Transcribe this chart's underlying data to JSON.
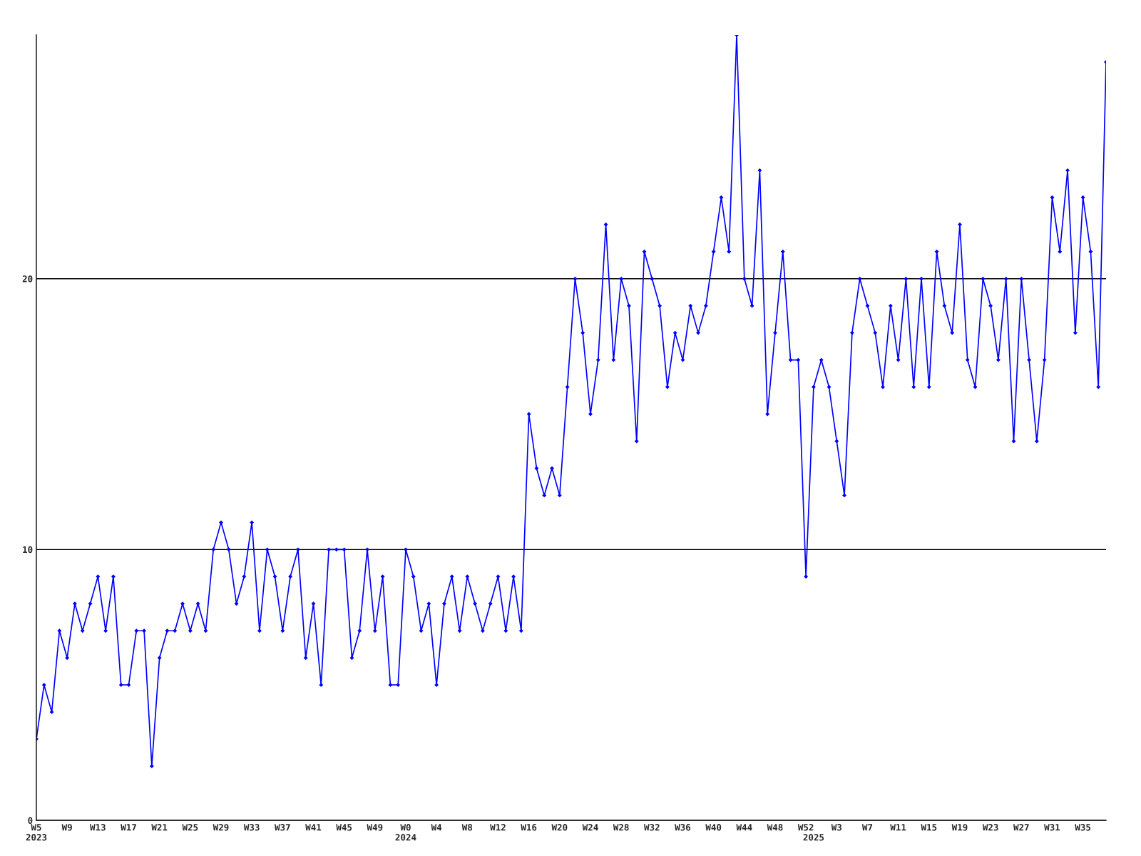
{
  "chart_data": {
    "type": "line",
    "categories": [
      "W5\n2023",
      null,
      null,
      null,
      "W9",
      null,
      null,
      null,
      "W13",
      null,
      null,
      null,
      "W17",
      null,
      null,
      null,
      "W21",
      null,
      null,
      null,
      "W25",
      null,
      null,
      null,
      "W29",
      null,
      null,
      null,
      "W33",
      null,
      null,
      null,
      "W37",
      null,
      null,
      null,
      "W41",
      null,
      null,
      null,
      "W45",
      null,
      null,
      null,
      "W49",
      null,
      null,
      null,
      "W0\n2024",
      null,
      null,
      null,
      "W4",
      null,
      null,
      null,
      "W8",
      null,
      null,
      null,
      "W12",
      null,
      null,
      null,
      "W16",
      null,
      null,
      null,
      "W20",
      null,
      null,
      null,
      "W24",
      null,
      null,
      null,
      "W28",
      null,
      null,
      null,
      "W32",
      null,
      null,
      null,
      "W36",
      null,
      null,
      null,
      "W40",
      null,
      null,
      null,
      "W44",
      null,
      null,
      null,
      "W48",
      null,
      null,
      null,
      "W52",
      "\n2025",
      null,
      null,
      "W3",
      null,
      null,
      null,
      "W7",
      null,
      null,
      null,
      "W11",
      null,
      null,
      null,
      "W15",
      null,
      null,
      null,
      "W19",
      null,
      null,
      null,
      "W23",
      null,
      null,
      null,
      "W27",
      null,
      null,
      null,
      "W31",
      null,
      null,
      null,
      "W35",
      null,
      null,
      null
    ],
    "series": [
      {
        "color": "#0000ff",
        "values": [
          3,
          5,
          4,
          7,
          6,
          8,
          7,
          8,
          9,
          7,
          9,
          5,
          5,
          7,
          7,
          2,
          6,
          7,
          7,
          8,
          7,
          8,
          7,
          10,
          11,
          10,
          8,
          9,
          11,
          7,
          10,
          9,
          7,
          9,
          10,
          6,
          8,
          5,
          10,
          10,
          10,
          6,
          7,
          10,
          7,
          9,
          5,
          5,
          10,
          9,
          7,
          8,
          5,
          8,
          9,
          7,
          9,
          8,
          7,
          8,
          9,
          7,
          9,
          7,
          15,
          13,
          12,
          13,
          12,
          16,
          20,
          18,
          15,
          17,
          22,
          17,
          20,
          19,
          14,
          21,
          20,
          19,
          16,
          18,
          17,
          19,
          18,
          19,
          21,
          23,
          21,
          29,
          20,
          19,
          24,
          15,
          18,
          21,
          17,
          17,
          9,
          16,
          17,
          16,
          14,
          12,
          18,
          20,
          19,
          18,
          16,
          19,
          17,
          20,
          16,
          20,
          16,
          21,
          19,
          18,
          22,
          17,
          16,
          20,
          19,
          17,
          20,
          14,
          20,
          17,
          14,
          17,
          23,
          21,
          24,
          18,
          23,
          21,
          16,
          28
        ]
      }
    ],
    "ylim": [
      0,
      29
    ],
    "yticks": [
      0,
      10,
      20
    ],
    "grid": "y",
    "marker": "diamond",
    "line_style": "solid"
  }
}
